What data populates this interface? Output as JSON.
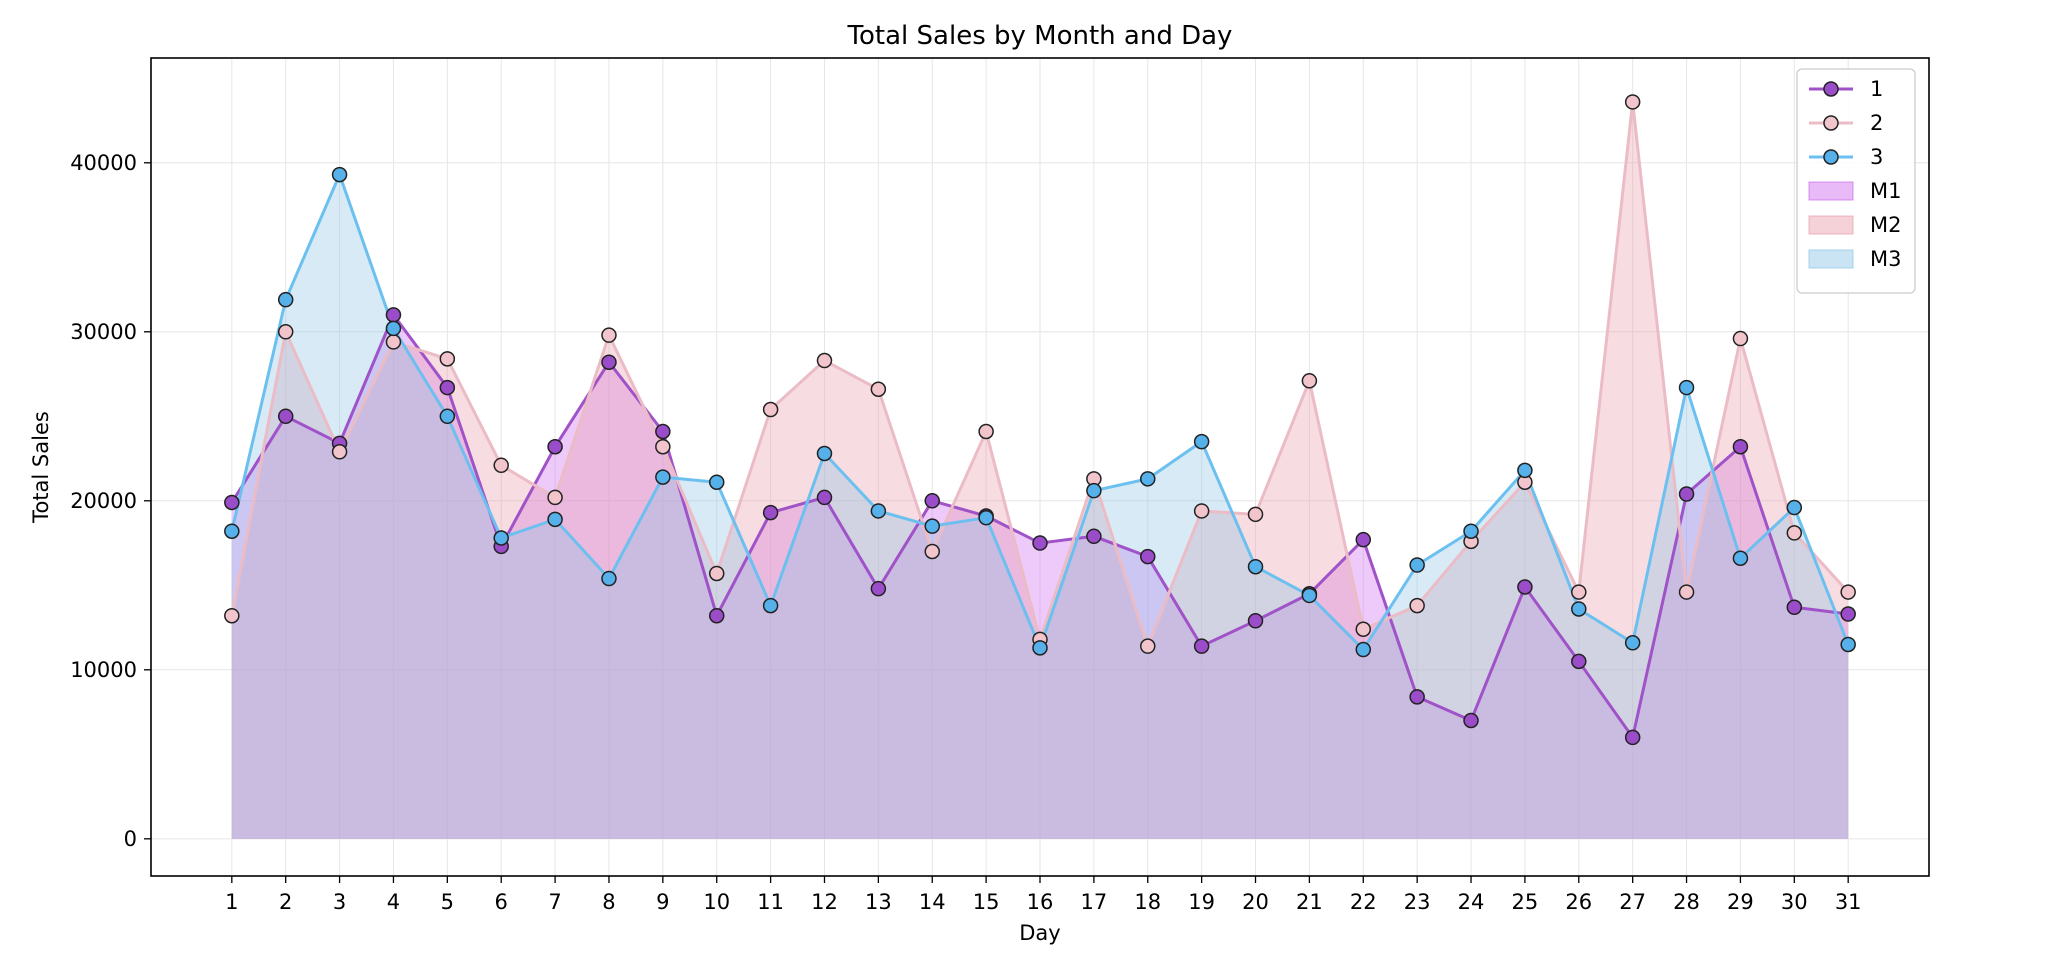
{
  "chart_data": {
    "type": "area",
    "title": "Total Sales by Month and Day",
    "xlabel": "Day",
    "ylabel": "Total Sales",
    "x": [
      1,
      2,
      3,
      4,
      5,
      6,
      7,
      8,
      9,
      10,
      11,
      12,
      13,
      14,
      15,
      16,
      17,
      18,
      19,
      20,
      21,
      22,
      23,
      24,
      25,
      26,
      27,
      28,
      29,
      30,
      31
    ],
    "xlim": [
      -0.5,
      32.5
    ],
    "ylim": [
      -2200,
      46200
    ],
    "yticks": [
      0,
      10000,
      20000,
      30000,
      40000
    ],
    "grid": true,
    "legend_position": "top-right",
    "series": [
      {
        "name": "1",
        "fill_name": "M1",
        "line_color": "#a052c8",
        "marker_color": "#9b4dc9",
        "fill_color": "#cc66ee",
        "values": [
          19900,
          25000,
          23400,
          31000,
          26700,
          17300,
          23200,
          28200,
          24100,
          13200,
          19300,
          20200,
          14800,
          20000,
          19100,
          17500,
          17900,
          16700,
          11400,
          12900,
          14500,
          17700,
          8400,
          7000,
          14900,
          10500,
          6000,
          20400,
          23200,
          13700,
          13300
        ]
      },
      {
        "name": "2",
        "fill_name": "M2",
        "line_color": "#ebbcc6",
        "marker_color": "#f2c4cc",
        "fill_color": "#e89aa8",
        "values": [
          13200,
          30000,
          22900,
          29400,
          28400,
          22100,
          20200,
          29800,
          23200,
          15700,
          25400,
          28300,
          26600,
          17000,
          24100,
          11800,
          21300,
          11400,
          19400,
          19200,
          27100,
          12400,
          13800,
          17600,
          21100,
          14600,
          43600,
          14600,
          29600,
          18100,
          14600
        ]
      },
      {
        "name": "3",
        "fill_name": "M3",
        "line_color": "#6cc0f0",
        "marker_color": "#56b0ea",
        "fill_color": "#8cc4e4",
        "values": [
          18200,
          31900,
          39300,
          30200,
          25000,
          17800,
          18900,
          15400,
          21400,
          21100,
          13800,
          22800,
          19400,
          18500,
          19000,
          11300,
          20600,
          21300,
          23500,
          16100,
          14400,
          11200,
          16200,
          18200,
          21800,
          13600,
          11600,
          26700,
          16600,
          19600,
          11500
        ]
      }
    ]
  }
}
